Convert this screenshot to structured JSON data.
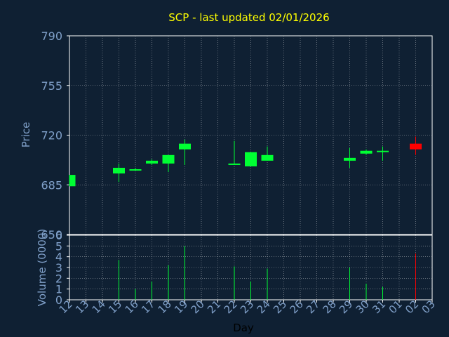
{
  "chart_data": {
    "type": "candlestick",
    "title": "SCP - last updated 02/01/2026",
    "xlabel": "Day",
    "ylabel": "Price",
    "volume_label": "Volume (0000)",
    "price_ylim": [
      650,
      790
    ],
    "price_ticks": [
      650,
      685,
      720,
      755,
      790
    ],
    "volume_ylim": [
      0,
      6
    ],
    "volume_ticks": [
      0,
      1,
      2,
      3,
      4,
      5,
      6
    ],
    "grid": true,
    "colors": {
      "background": "#0f2033",
      "axis": "#ffffff",
      "grid": "#ffffff",
      "title": "#ffff00",
      "label": "#7f9fc8",
      "up": "#00ff33",
      "down": "#ff0000"
    },
    "days": [
      "12",
      "13",
      "14",
      "15",
      "16",
      "17",
      "18",
      "19",
      "20",
      "21",
      "22",
      "23",
      "24",
      "25",
      "26",
      "27",
      "28",
      "29",
      "30",
      "31",
      "01",
      "02",
      "03"
    ],
    "candles": [
      {
        "day": "12",
        "open": 684,
        "close": 692,
        "high": 692,
        "low": 684,
        "volume": 0,
        "dir": "up"
      },
      {
        "day": "15",
        "open": 693,
        "close": 697,
        "high": 700,
        "low": 687,
        "volume": 3.7,
        "dir": "up"
      },
      {
        "day": "16",
        "open": 695,
        "close": 696,
        "high": 697,
        "low": 695,
        "volume": 1.0,
        "dir": "up"
      },
      {
        "day": "17",
        "open": 700,
        "close": 702,
        "high": 703,
        "low": 699,
        "volume": 1.7,
        "dir": "up"
      },
      {
        "day": "18",
        "open": 700,
        "close": 706,
        "high": 706,
        "low": 694,
        "volume": 3.2,
        "dir": "up"
      },
      {
        "day": "19",
        "open": 710,
        "close": 714,
        "high": 717,
        "low": 699,
        "volume": 5.0,
        "dir": "up"
      },
      {
        "day": "22",
        "open": 699,
        "close": 700,
        "high": 716,
        "low": 699,
        "volume": 3.1,
        "dir": "up"
      },
      {
        "day": "23",
        "open": 698,
        "close": 708,
        "high": 708,
        "low": 698,
        "volume": 1.7,
        "dir": "up"
      },
      {
        "day": "24",
        "open": 702,
        "close": 706,
        "high": 712,
        "low": 702,
        "volume": 2.9,
        "dir": "up"
      },
      {
        "day": "29",
        "open": 702,
        "close": 704,
        "high": 711,
        "low": 697,
        "volume": 3.0,
        "dir": "up"
      },
      {
        "day": "30",
        "open": 707,
        "close": 709,
        "high": 710,
        "low": 706,
        "volume": 1.5,
        "dir": "up"
      },
      {
        "day": "31",
        "open": 708,
        "close": 709,
        "high": 712,
        "low": 702,
        "volume": 1.2,
        "dir": "up"
      },
      {
        "day": "02",
        "open": 714,
        "close": 710,
        "high": 719,
        "low": 706,
        "volume": 4.3,
        "dir": "down"
      }
    ]
  }
}
